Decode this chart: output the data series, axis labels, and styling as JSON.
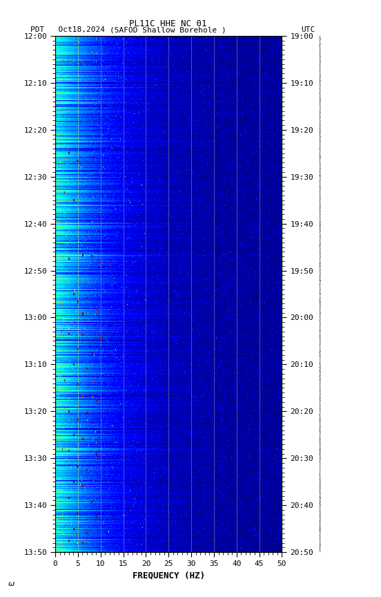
{
  "title_line1": "PL11C HHE NC 01",
  "title_line2_left": "PDT   Oct18,2024",
  "title_line2_mid": "(SAFOD Shallow Borehole )",
  "title_line2_right": "UTC",
  "xlabel": "FREQUENCY (HZ)",
  "freq_min": 0,
  "freq_max": 50,
  "yticks_pdt": [
    "12:00",
    "12:10",
    "12:20",
    "12:30",
    "12:40",
    "12:50",
    "13:00",
    "13:10",
    "13:20",
    "13:30",
    "13:40",
    "13:50"
  ],
  "yticks_utc": [
    "19:00",
    "19:10",
    "19:20",
    "19:30",
    "19:40",
    "19:50",
    "20:00",
    "20:10",
    "20:20",
    "20:30",
    "20:40",
    "20:50"
  ],
  "xticks": [
    0,
    5,
    10,
    15,
    20,
    25,
    30,
    35,
    40,
    45,
    50
  ],
  "vgrid_lines": [
    5,
    10,
    15,
    20,
    25,
    30,
    35,
    40,
    45
  ],
  "background_color": "#ffffff",
  "colormap": "jet",
  "fig_width": 5.52,
  "fig_height": 8.64,
  "dpi": 100
}
